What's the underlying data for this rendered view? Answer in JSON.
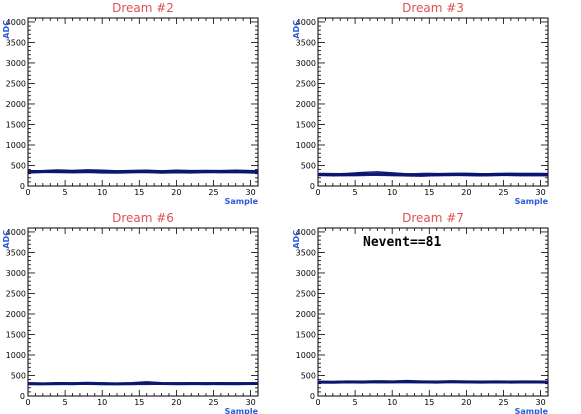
{
  "chart_data": [
    {
      "type": "line",
      "title": "Dream #2",
      "xlabel": "Sample",
      "ylabel": "ADC",
      "xlim": [
        0,
        31
      ],
      "ylim": [
        0,
        4096
      ],
      "xticks": [
        "0",
        "5",
        "10",
        "15",
        "20",
        "25",
        "30"
      ],
      "yticks": [
        "500",
        "1000",
        "1500",
        "2000",
        "2500",
        "3000",
        "3500",
        "4000"
      ],
      "zero_label": "0",
      "annotation": "",
      "band_center": 350,
      "band_halfwidth": 40,
      "series": [
        {
          "x": [
            0,
            2,
            4,
            6,
            8,
            10,
            12,
            14,
            16,
            18,
            20,
            22,
            24,
            26,
            28,
            31
          ],
          "y": [
            340,
            345,
            360,
            350,
            365,
            355,
            340,
            350,
            355,
            340,
            355,
            345,
            350,
            345,
            355,
            340
          ]
        },
        {
          "x": [
            0,
            2,
            4,
            6,
            8,
            10,
            12,
            14,
            16,
            18,
            20,
            22,
            24,
            26,
            28,
            31
          ],
          "y": [
            320,
            330,
            335,
            325,
            330,
            320,
            315,
            325,
            330,
            315,
            325,
            320,
            330,
            325,
            330,
            315
          ]
        },
        {
          "x": [
            0,
            2,
            4,
            6,
            8,
            10,
            12,
            14,
            16,
            18,
            20,
            22,
            24,
            26,
            28,
            31
          ],
          "y": [
            370,
            375,
            390,
            380,
            395,
            385,
            370,
            380,
            385,
            370,
            385,
            375,
            380,
            375,
            385,
            370
          ]
        }
      ]
    },
    {
      "type": "line",
      "title": "Dream #3",
      "xlabel": "Sample",
      "ylabel": "ADC",
      "xlim": [
        0,
        31
      ],
      "ylim": [
        0,
        4096
      ],
      "xticks": [
        "0",
        "5",
        "10",
        "15",
        "20",
        "25",
        "30"
      ],
      "yticks": [
        "500",
        "1000",
        "1500",
        "2000",
        "2500",
        "3000",
        "3500",
        "4000"
      ],
      "zero_label": "0",
      "annotation": "",
      "band_center": 280,
      "band_halfwidth": 45,
      "series": [
        {
          "x": [
            0,
            2,
            4,
            6,
            8,
            10,
            12,
            14,
            16,
            18,
            20,
            22,
            24,
            26,
            28,
            31
          ],
          "y": [
            280,
            275,
            285,
            300,
            310,
            295,
            270,
            265,
            280,
            290,
            285,
            275,
            280,
            290,
            285,
            280
          ]
        },
        {
          "x": [
            0,
            2,
            4,
            6,
            8,
            10,
            12,
            14,
            16,
            18,
            20,
            22,
            24,
            26,
            28,
            31
          ],
          "y": [
            260,
            250,
            255,
            265,
            270,
            260,
            245,
            240,
            255,
            260,
            255,
            250,
            255,
            260,
            255,
            250
          ]
        },
        {
          "x": [
            0,
            2,
            4,
            6,
            8,
            10,
            12,
            14,
            16,
            18,
            20,
            22,
            24,
            26,
            28,
            31
          ],
          "y": [
            300,
            295,
            305,
            330,
            345,
            320,
            295,
            290,
            300,
            310,
            305,
            300,
            300,
            310,
            305,
            300
          ]
        }
      ]
    },
    {
      "type": "line",
      "title": "Dream #6",
      "xlabel": "Sample",
      "ylabel": "ADC",
      "xlim": [
        0,
        31
      ],
      "ylim": [
        0,
        4096
      ],
      "xticks": [
        "0",
        "5",
        "10",
        "15",
        "20",
        "25",
        "30"
      ],
      "yticks": [
        "500",
        "1000",
        "1500",
        "2000",
        "2500",
        "3000",
        "3500",
        "4000"
      ],
      "zero_label": "0",
      "annotation": "",
      "band_center": 300,
      "band_halfwidth": 35,
      "series": [
        {
          "x": [
            0,
            2,
            4,
            6,
            8,
            10,
            12,
            14,
            16,
            18,
            20,
            22,
            24,
            26,
            28,
            31
          ],
          "y": [
            300,
            295,
            305,
            300,
            310,
            300,
            295,
            300,
            320,
            305,
            300,
            305,
            300,
            305,
            300,
            305
          ]
        },
        {
          "x": [
            0,
            2,
            4,
            6,
            8,
            10,
            12,
            14,
            16,
            18,
            20,
            22,
            24,
            26,
            28,
            31
          ],
          "y": [
            280,
            275,
            285,
            280,
            290,
            280,
            275,
            280,
            295,
            285,
            280,
            285,
            280,
            285,
            280,
            285
          ]
        },
        {
          "x": [
            0,
            2,
            4,
            6,
            8,
            10,
            12,
            14,
            16,
            18,
            20,
            22,
            24,
            26,
            28,
            31
          ],
          "y": [
            320,
            315,
            325,
            320,
            330,
            320,
            315,
            325,
            345,
            325,
            320,
            325,
            320,
            325,
            320,
            325
          ]
        }
      ]
    },
    {
      "type": "line",
      "title": "Dream #7",
      "xlabel": "Sample",
      "ylabel": "ADC",
      "xlim": [
        0,
        31
      ],
      "ylim": [
        0,
        4096
      ],
      "xticks": [
        "0",
        "5",
        "10",
        "15",
        "20",
        "25",
        "30"
      ],
      "yticks": [
        "500",
        "1000",
        "1500",
        "2000",
        "2500",
        "3000",
        "3500",
        "4000"
      ],
      "zero_label": "0",
      "annotation": "Nevent==81",
      "band_center": 340,
      "band_halfwidth": 35,
      "series": [
        {
          "x": [
            0,
            2,
            4,
            6,
            8,
            10,
            12,
            14,
            16,
            18,
            20,
            22,
            24,
            26,
            28,
            31
          ],
          "y": [
            340,
            335,
            345,
            340,
            350,
            345,
            355,
            345,
            340,
            350,
            345,
            340,
            345,
            340,
            345,
            340
          ]
        },
        {
          "x": [
            0,
            2,
            4,
            6,
            8,
            10,
            12,
            14,
            16,
            18,
            20,
            22,
            24,
            26,
            28,
            31
          ],
          "y": [
            320,
            315,
            325,
            320,
            330,
            325,
            330,
            325,
            320,
            330,
            325,
            320,
            325,
            320,
            325,
            320
          ]
        },
        {
          "x": [
            0,
            2,
            4,
            6,
            8,
            10,
            12,
            14,
            16,
            18,
            20,
            22,
            24,
            26,
            28,
            31
          ],
          "y": [
            360,
            355,
            365,
            360,
            370,
            365,
            375,
            365,
            360,
            370,
            365,
            360,
            365,
            360,
            365,
            360
          ]
        }
      ]
    }
  ],
  "colors": {
    "title": "#e05050",
    "axis_label": "#2a5bd7",
    "trace": "#0a1670",
    "frame": "#000000"
  }
}
